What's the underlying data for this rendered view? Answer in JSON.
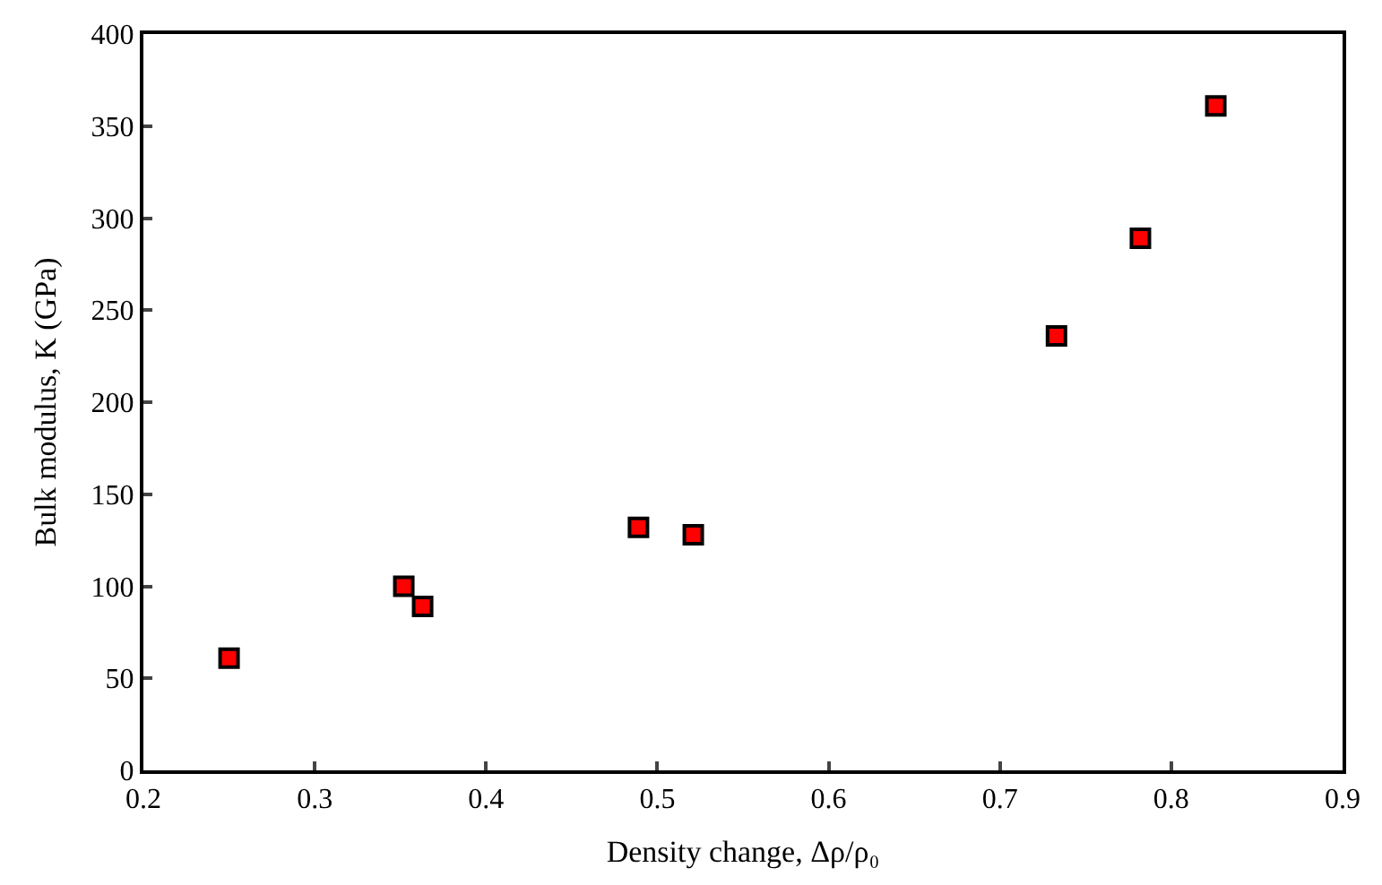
{
  "chart_data": {
    "type": "scatter",
    "xlabel": "Density change, Δρ/ρ₀",
    "ylabel": "Bulk modulus, K (GPa)",
    "x": [
      0.25,
      0.352,
      0.363,
      0.489,
      0.521,
      0.733,
      0.782,
      0.826
    ],
    "series": [
      {
        "color": "#ff0000",
        "values": [
          61,
          100,
          89,
          132,
          128,
          236,
          289,
          361
        ]
      }
    ],
    "xlim": [
      0.2,
      0.9
    ],
    "xticks": [
      0.2,
      0.3,
      0.4,
      0.5,
      0.6,
      0.7,
      0.8,
      0.9
    ],
    "ylim": [
      0,
      400
    ],
    "yticks": [
      0,
      50,
      100,
      150,
      200,
      250,
      300,
      350,
      400
    ],
    "marker": "square"
  }
}
